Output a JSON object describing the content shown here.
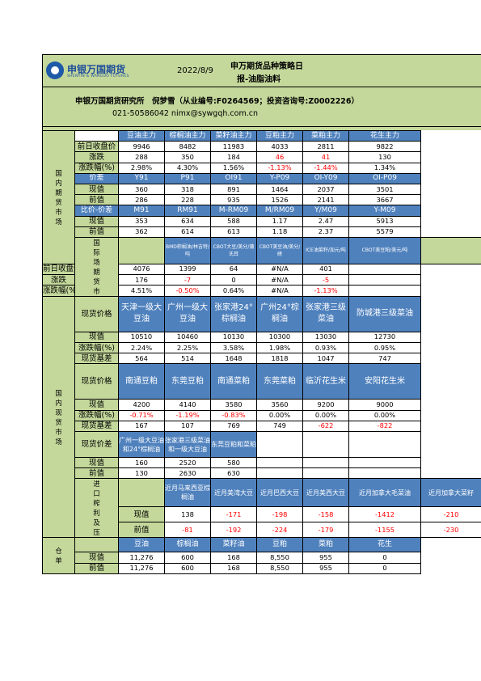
{
  "header": {
    "logo_cn": "申银万国期货",
    "logo_en": "SHENYIN & WANGUO FUTURES",
    "date": "2022/8/9",
    "title1": "申万期货品种策略日",
    "title2": "报-油脂油料",
    "info_line1": "申银万国期货研究所　倪梦雪（从业编号:F0264569；投资咨询号:Z0002226）",
    "info_line2": "021-50586042 nimx@sywgqh.com.cn"
  },
  "sections": {
    "domestic_futures": "国内期货市场",
    "intl_market": "国际场期货市",
    "domestic_spot": "国内现货市场",
    "import_margin": "进口榨利及压",
    "warehouse": "仓单"
  },
  "futures": {
    "cols": [
      "豆油主力",
      "棕榈油主力",
      "菜籽油主力",
      "豆粕主力",
      "菜粕主力",
      "花生主力"
    ],
    "rows": [
      {
        "label": "前日收盘价",
        "vals": [
          "9946",
          "8482",
          "11983",
          "4033",
          "2811",
          "9822"
        ],
        "neg": [
          false,
          false,
          false,
          false,
          false,
          false
        ]
      },
      {
        "label": "涨跌",
        "vals": [
          "288",
          "350",
          "184",
          "46",
          "41",
          "130"
        ],
        "neg": [
          false,
          false,
          false,
          true,
          true,
          false
        ]
      },
      {
        "label": "涨跌幅(%)",
        "vals": [
          "2.98%",
          "4.30%",
          "1.56%",
          "-1.13%",
          "-1.44%",
          "1.34%"
        ],
        "neg": [
          false,
          false,
          false,
          true,
          true,
          false
        ]
      }
    ],
    "spread_head": {
      "label": "价差",
      "vals": [
        "Y91",
        "P91",
        "OI91",
        "Y-P09",
        "OI-Y09",
        "OI-P09"
      ]
    },
    "spread_rows": [
      {
        "label": "现值",
        "vals": [
          "360",
          "318",
          "891",
          "1464",
          "2037",
          "3501"
        ]
      },
      {
        "label": "前值",
        "vals": [
          "286",
          "228",
          "935",
          "1526",
          "2141",
          "3667"
        ]
      }
    ],
    "ratio_head": {
      "label": "比价-价差",
      "vals": [
        "M91",
        "RM91",
        "M-RM09",
        "M/RM09",
        "Y/M09",
        "Y-M09"
      ]
    },
    "ratio_rows": [
      {
        "label": "现值",
        "vals": [
          "353",
          "634",
          "588",
          "1.17",
          "2.47",
          "5913"
        ]
      },
      {
        "label": "前值",
        "vals": [
          "362",
          "614",
          "613",
          "1.18",
          "2.37",
          "5579"
        ]
      }
    ]
  },
  "intl": {
    "cols": [
      "BMD棕榈油/林吉特/吨",
      "CBOT大豆/美分/蒲氏耳",
      "CBOT美豆油/美分/磅",
      "ICE油菜籽/加元/吨",
      "CBOT美豆粕/美元/吨"
    ],
    "rows": [
      {
        "label": "前日收盘价",
        "vals": [
          "4076",
          "1399",
          "64",
          "#N/A",
          "401"
        ],
        "neg": [
          false,
          false,
          false,
          false,
          false
        ]
      },
      {
        "label": "涨跌",
        "vals": [
          "176",
          "-7",
          "0",
          "#N/A",
          "-5"
        ],
        "neg": [
          false,
          true,
          false,
          false,
          true
        ]
      },
      {
        "label": "涨跌幅(%)",
        "vals": [
          "4.51%",
          "-0.50%",
          "0.64%",
          "#N/A",
          "-1.13%"
        ],
        "neg": [
          false,
          true,
          false,
          false,
          true
        ]
      }
    ]
  },
  "spot1": {
    "label": "现货价格",
    "cols": [
      "天津一级大豆油",
      "广州一级大豆油",
      "张家港24°棕榈油",
      "广州24°棕榈油",
      "张家港三级菜油",
      "防城港三级菜油"
    ],
    "rows": [
      {
        "label": "现值",
        "vals": [
          "10510",
          "10460",
          "10130",
          "10300",
          "13030",
          "12730"
        ],
        "neg": [
          false,
          false,
          false,
          false,
          false,
          false
        ]
      },
      {
        "label": "涨跌幅(%)",
        "vals": [
          "2.24%",
          "2.25%",
          "3.58%",
          "1.98%",
          "0.93%",
          "0.95%"
        ],
        "neg": [
          false,
          false,
          false,
          false,
          false,
          false
        ]
      },
      {
        "label": "现货基差",
        "vals": [
          "564",
          "514",
          "1648",
          "1818",
          "1047",
          "747"
        ],
        "neg": [
          false,
          false,
          false,
          false,
          false,
          false
        ]
      }
    ]
  },
  "spot2": {
    "label": "现货价格",
    "cols": [
      "南通豆粕",
      "东莞豆粕",
      "南通菜粕",
      "东莞菜粕",
      "临沂花生米",
      "安阳花生米"
    ],
    "rows": [
      {
        "label": "现值",
        "vals": [
          "4200",
          "4140",
          "3580",
          "3560",
          "9200",
          "9000"
        ],
        "neg": [
          false,
          false,
          false,
          false,
          false,
          false
        ]
      },
      {
        "label": "涨跌幅(%)",
        "vals": [
          "-0.71%",
          "-1.19%",
          "-0.83%",
          "0.00%",
          "0.00%",
          "0.00%"
        ],
        "neg": [
          true,
          true,
          true,
          false,
          false,
          false
        ]
      },
      {
        "label": "现货基差",
        "vals": [
          "167",
          "107",
          "769",
          "749",
          "-622",
          "-822"
        ],
        "neg": [
          false,
          false,
          false,
          false,
          true,
          true
        ]
      }
    ]
  },
  "spot3": {
    "label": "现货价差",
    "cols": [
      "广州一级大豆油和24°棕榈油",
      "张家港三级菜油和一级大豆油",
      "东莞豆粕和菜粕"
    ],
    "rows": [
      {
        "label": "现值",
        "vals": [
          "160",
          "2520",
          "580"
        ]
      },
      {
        "label": "前值",
        "vals": [
          "130",
          "2630",
          "630"
        ]
      }
    ]
  },
  "margin": {
    "cols": [
      "近月马来西亚棕榈油",
      "近月美湾大豆",
      "近月巴西大豆",
      "近月美西大豆",
      "近月加拿大毛菜油",
      "近月加拿大菜籽"
    ],
    "rows": [
      {
        "label": "现值",
        "vals": [
          "138",
          "-171",
          "-198",
          "-158",
          "-1412",
          "-210"
        ],
        "neg": [
          false,
          true,
          true,
          true,
          true,
          true
        ]
      },
      {
        "label": "前值",
        "vals": [
          "-81",
          "-192",
          "-224",
          "-179",
          "-1155",
          "-230"
        ],
        "neg": [
          true,
          true,
          true,
          true,
          true,
          true
        ]
      }
    ]
  },
  "warehouse": {
    "cols": [
      "豆油",
      "棕榈油",
      "菜籽油",
      "豆粕",
      "菜粕",
      "花生"
    ],
    "rows": [
      {
        "label": "现值",
        "vals": [
          "11,276",
          "600",
          "168",
          "8,550",
          "955",
          "0"
        ]
      },
      {
        "label": "前值",
        "vals": [
          "11,276",
          "600",
          "168",
          "8,550",
          "955",
          "0"
        ]
      }
    ]
  }
}
